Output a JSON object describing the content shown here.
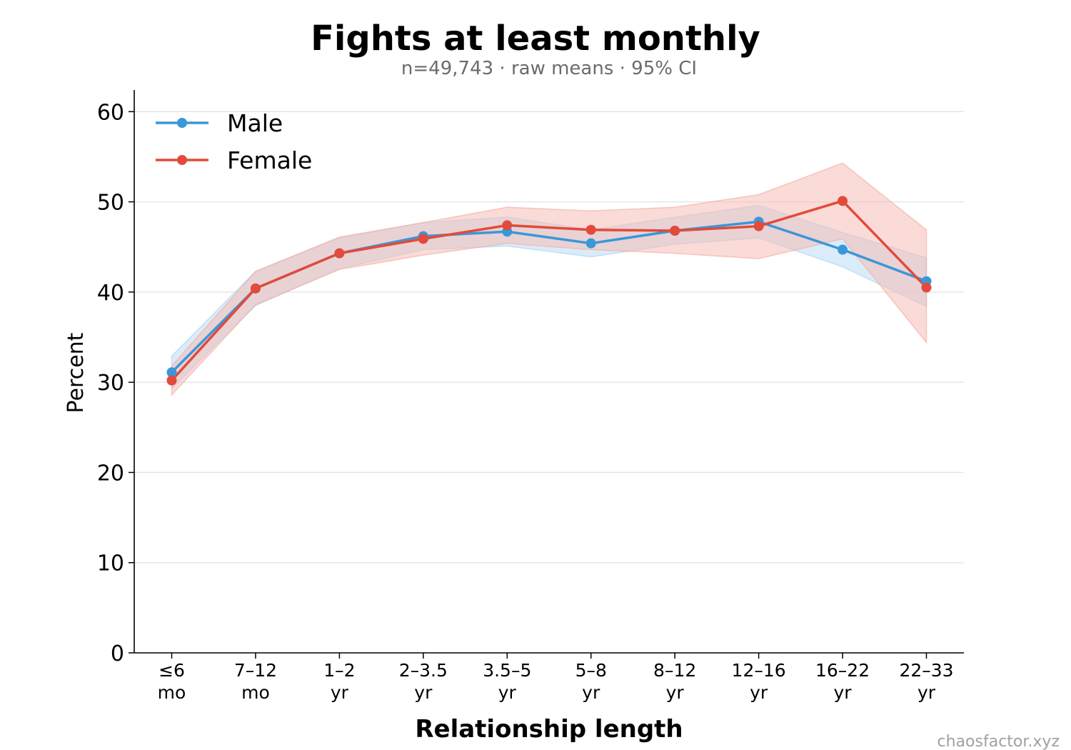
{
  "chart_data": {
    "type": "line",
    "title": "Fights at least monthly",
    "subtitle": "n=49,743 · raw means · 95% CI",
    "xlabel": "Relationship length",
    "ylabel": "Percent",
    "ylim": [
      0,
      62.4
    ],
    "yticks": [
      "0",
      "10",
      "20",
      "30",
      "40",
      "50",
      "60"
    ],
    "grid": "horizontal",
    "legend_position": "top-left",
    "categories": [
      [
        "≤6",
        "mo"
      ],
      [
        "7–12",
        "mo"
      ],
      [
        "1–2",
        "yr"
      ],
      [
        "2–3.5",
        "yr"
      ],
      [
        "3.5–5",
        "yr"
      ],
      [
        "5–8",
        "yr"
      ],
      [
        "8–12",
        "yr"
      ],
      [
        "12–16",
        "yr"
      ],
      [
        "16–22",
        "yr"
      ],
      [
        "22–33",
        "yr"
      ]
    ],
    "series": [
      {
        "name": "Male",
        "color": "#3a97d9",
        "values": [
          31.1,
          40.4,
          44.3,
          46.2,
          46.7,
          45.4,
          46.8,
          47.8,
          44.7,
          41.2
        ],
        "ci_low": [
          29.3,
          38.5,
          42.6,
          44.7,
          45.1,
          43.9,
          45.3,
          46.0,
          42.8,
          38.4
        ],
        "ci_high": [
          32.9,
          42.3,
          46.0,
          47.7,
          48.3,
          46.9,
          48.3,
          49.6,
          46.6,
          43.8
        ]
      },
      {
        "name": "Female",
        "color": "#e24a3b",
        "values": [
          30.2,
          40.4,
          44.3,
          45.9,
          47.4,
          46.9,
          46.8,
          47.3,
          50.1,
          40.5
        ],
        "ci_low": [
          28.6,
          38.6,
          42.5,
          44.1,
          45.4,
          44.7,
          44.3,
          43.7,
          45.9,
          34.4
        ],
        "ci_high": [
          31.8,
          42.3,
          46.1,
          47.7,
          49.4,
          49.0,
          49.4,
          50.8,
          54.3,
          46.9
        ]
      }
    ]
  },
  "footer": {
    "watermark": "chaosfactor.xyz"
  }
}
